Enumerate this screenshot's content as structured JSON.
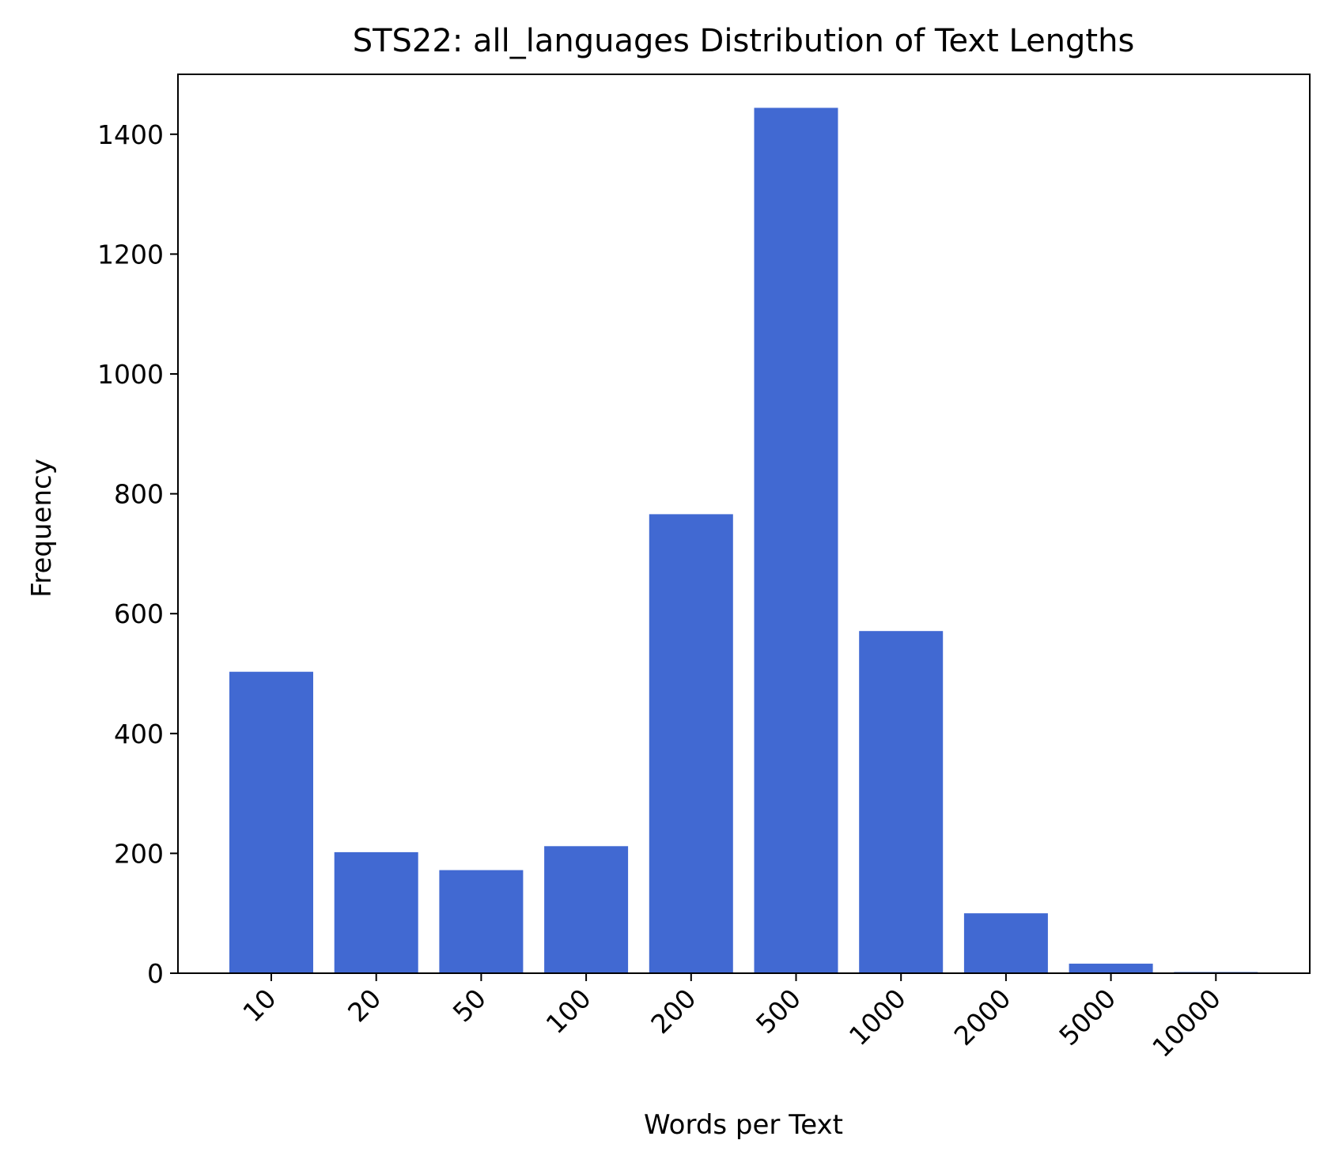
{
  "chart_data": {
    "type": "bar",
    "title": "STS22: all_languages Distribution of Text Lengths",
    "xlabel": "Words per Text",
    "ylabel": "Frequency",
    "categories": [
      "10",
      "20",
      "50",
      "100",
      "200",
      "500",
      "1000",
      "2000",
      "5000",
      "10000"
    ],
    "values": [
      503,
      202,
      172,
      212,
      766,
      1444,
      571,
      100,
      16,
      2
    ],
    "ylim": [
      0,
      1500
    ],
    "yticks": [
      0,
      200,
      400,
      600,
      800,
      1000,
      1200,
      1400
    ],
    "bar_color": "#4169d2",
    "grid": false,
    "legend": "none"
  }
}
